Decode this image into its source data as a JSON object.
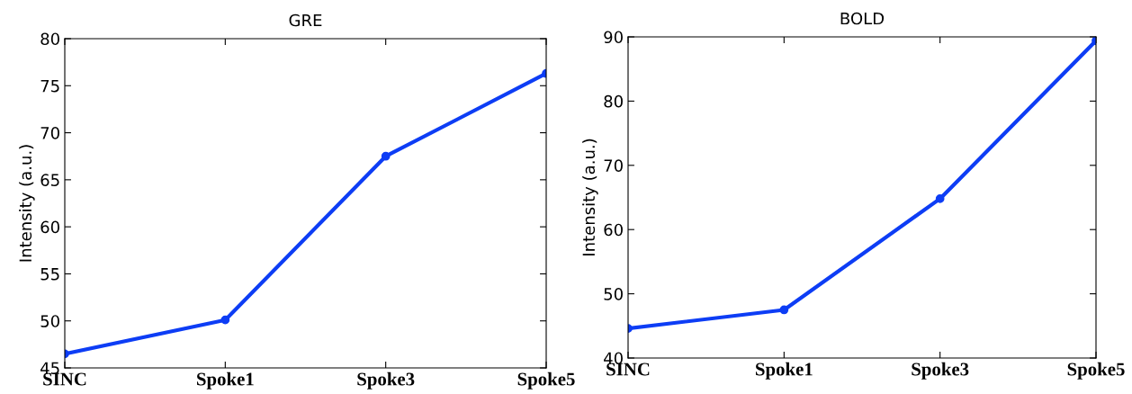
{
  "chart_data": [
    {
      "type": "line",
      "title": "GRE",
      "ylabel": "Intensity (a.u.)",
      "categories": [
        "SINC",
        "Spoke1",
        "Spoke3",
        "Spoke5"
      ],
      "series": [
        {
          "color": "#0d3df5",
          "values": [
            46.5,
            50.1,
            67.5,
            76.3
          ]
        }
      ],
      "ylim": [
        45,
        80
      ],
      "yticks": [
        45,
        50,
        55,
        60,
        65,
        70,
        75,
        80
      ],
      "grid": false,
      "marker": "circle",
      "line_style": "solid"
    },
    {
      "type": "line",
      "title": "BOLD",
      "ylabel": "Intensity (a.u.)",
      "categories": [
        "SINC",
        "Spoke1",
        "Spoke3",
        "Spoke5"
      ],
      "series": [
        {
          "color": "#0d3df5",
          "values": [
            44.6,
            47.5,
            64.8,
            89.4
          ]
        }
      ],
      "ylim": [
        40,
        90
      ],
      "yticks": [
        40,
        50,
        60,
        70,
        80,
        90
      ],
      "grid": false,
      "marker": "circle",
      "line_style": "solid"
    }
  ]
}
